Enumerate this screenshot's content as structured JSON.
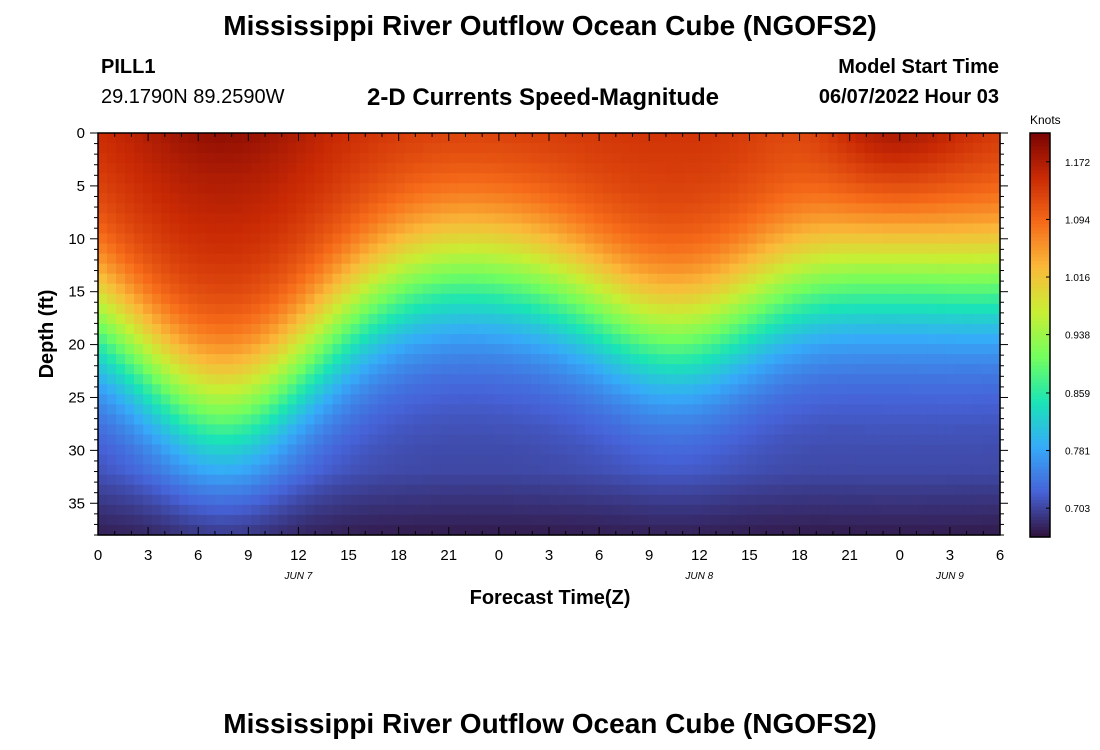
{
  "page": {
    "title": "Mississippi River Outflow Ocean Cube (NGOFS2)",
    "title_repeat": "Mississippi River Outflow Ocean Cube (NGOFS2)",
    "station": "PILL1",
    "latlon": "29.1790N  89.2590W",
    "subtitle": "2-D Currents Speed-Magnitude",
    "model_start_label": "Model Start Time",
    "model_start_value": "06/07/2022 Hour 03"
  },
  "chart_data": {
    "type": "heatmap",
    "title": "2-D Currents Speed-Magnitude",
    "xlabel": "Forecast Time(Z)",
    "ylabel": "Depth (ft)",
    "x_hours_from_start": [
      0,
      54
    ],
    "x_tick_labels": [
      "0",
      "3",
      "6",
      "9",
      "12",
      "15",
      "18",
      "21",
      "0",
      "3",
      "6",
      "9",
      "12",
      "15",
      "18",
      "21",
      "0",
      "3",
      "6"
    ],
    "date_labels": [
      {
        "label": "JUN 7",
        "at_tick": 4
      },
      {
        "label": "JUN 8",
        "at_tick": 12
      },
      {
        "label": "JUN 9",
        "at_tick": 17
      }
    ],
    "ylim": [
      0,
      38
    ],
    "y_ticks": [
      0,
      5,
      10,
      15,
      20,
      25,
      30,
      35
    ],
    "colorbar": {
      "units": "Knots",
      "range": [
        0.664,
        1.211
      ],
      "tick_values": [
        1.172,
        1.094,
        1.016,
        0.938,
        0.859,
        0.781,
        0.703
      ]
    },
    "field_description": {
      "surface_maxima_hours": [
        7.5,
        34.5
      ],
      "surface_minima_hours": [
        21,
        42.5
      ],
      "max_speed": 1.2,
      "min_speed": 0.67
    },
    "grid": false,
    "colors": {
      "frame": "#000000",
      "palette": [
        "#30123b",
        "#4662d7",
        "#36aaf9",
        "#1ae4b6",
        "#72fe5e",
        "#c7ef34",
        "#faba39",
        "#f66b19",
        "#ca2a04",
        "#7a0403"
      ]
    }
  }
}
